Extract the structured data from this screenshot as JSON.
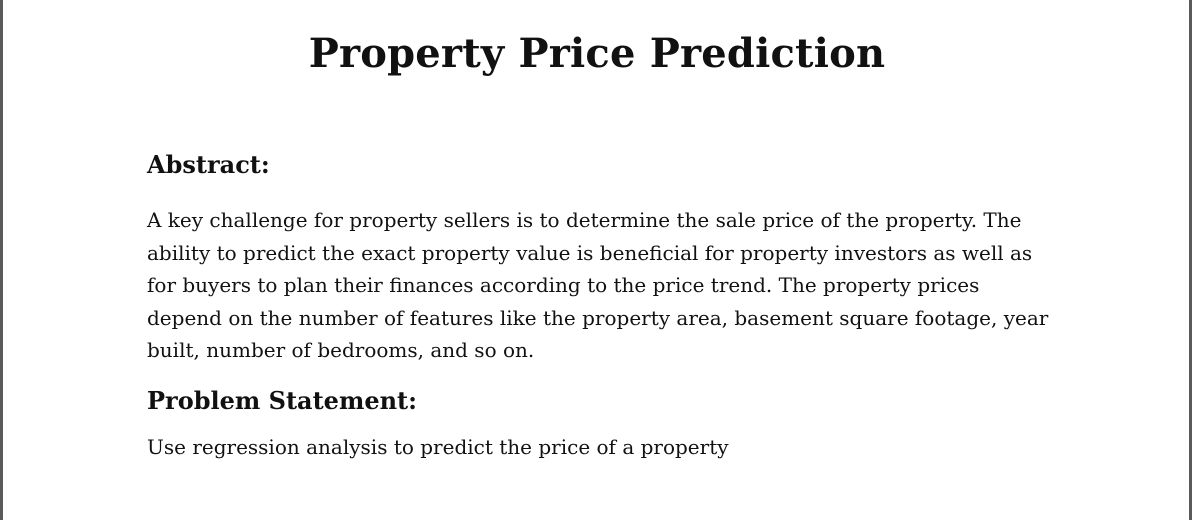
{
  "document": {
    "title": "Property Price Prediction",
    "sections": [
      {
        "heading": "Abstract:",
        "body": "A key challenge for property sellers is to determine the sale price of the property. The ability to predict the exact property value is beneficial for property investors as well as for buyers to plan their finances according to the price trend. The property prices depend on the number of features like the property area, basement square footage, year built, number of bedrooms, and so on."
      },
      {
        "heading": "Problem Statement:",
        "body": "Use regression analysis to predict the price of a property"
      }
    ]
  }
}
